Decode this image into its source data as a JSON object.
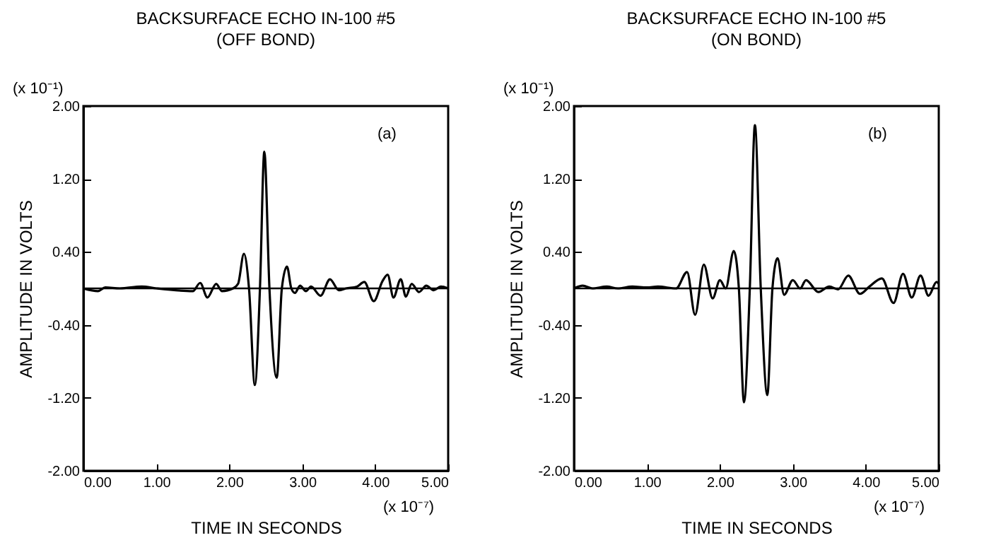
{
  "chart_data": [
    {
      "type": "line",
      "title": "BACKSURFACE ECHO IN-100 #5",
      "subtitle": "(OFF BOND)",
      "xlabel": "TIME IN SECONDS",
      "ylabel": "AMPLITUDE IN VOLTS",
      "annotations": [
        "(x 10⁻¹)",
        "(x 10⁻⁷)",
        "(a)"
      ],
      "x": [
        0,
        0.2,
        0.3,
        0.5,
        0.8,
        1.0,
        1.5,
        1.6,
        1.7,
        1.82,
        1.9,
        2.05,
        2.12,
        2.2,
        2.27,
        2.35,
        2.42,
        2.48,
        2.55,
        2.65,
        2.72,
        2.79,
        2.85,
        2.9,
        2.97,
        3.05,
        3.12,
        3.25,
        3.38,
        3.5,
        3.6,
        3.75,
        3.85,
        3.98,
        4.1,
        4.17,
        4.25,
        4.35,
        4.42,
        4.5,
        4.6,
        4.7,
        4.8,
        4.9,
        5.0
      ],
      "series": [
        {
          "color": "#000000",
          "values": [
            0,
            -0.03,
            0.01,
            0,
            0.02,
            0,
            -0.03,
            0.06,
            -0.1,
            0.05,
            -0.03,
            0,
            0.05,
            0.38,
            0,
            -1.06,
            0,
            1.5,
            0,
            -0.98,
            0,
            0.24,
            0,
            -0.05,
            0.03,
            -0.03,
            0.02,
            -0.08,
            0.1,
            -0.02,
            0,
            0.02,
            0.07,
            -0.14,
            0.08,
            0.15,
            -0.1,
            0.1,
            -0.09,
            0.05,
            -0.04,
            0.03,
            -0.02,
            0.02,
            0
          ]
        }
      ],
      "xlim": [
        0,
        5
      ],
      "xticks": [
        {
          "value": 0,
          "label": "0.00"
        },
        {
          "value": 1,
          "label": "1.00"
        },
        {
          "value": 2,
          "label": "2.00"
        },
        {
          "value": 3,
          "label": "3.00"
        },
        {
          "value": 4,
          "label": "4.00"
        },
        {
          "value": 5,
          "label": "5.00"
        }
      ],
      "ylim": [
        -2,
        2
      ],
      "yticks": [
        {
          "value": -2,
          "label": "-2.00"
        },
        {
          "value": -1.2,
          "label": "-1.20"
        },
        {
          "value": -0.4,
          "label": "-0.40"
        },
        {
          "value": 0.4,
          "label": "0.40"
        },
        {
          "value": 1.2,
          "label": "1.20"
        },
        {
          "value": 2,
          "label": "2.00"
        }
      ],
      "ref_lines": [
        {
          "axis": "y",
          "value": 0,
          "color": "#000000"
        }
      ]
    },
    {
      "type": "line",
      "title": "BACKSURFACE ECHO IN-100 #5",
      "subtitle": "(ON BOND)",
      "xlabel": "TIME IN SECONDS",
      "ylabel": "AMPLITUDE IN VOLTS",
      "annotations": [
        "(x 10⁻¹)",
        "(x 10⁻⁷)",
        "(b)"
      ],
      "x": [
        0,
        0.12,
        0.25,
        0.45,
        0.6,
        0.8,
        1.0,
        1.15,
        1.4,
        1.55,
        1.66,
        1.78,
        1.9,
        2.0,
        2.08,
        2.19,
        2.26,
        2.33,
        2.41,
        2.48,
        2.56,
        2.65,
        2.72,
        2.79,
        2.88,
        3.0,
        3.1,
        3.18,
        3.35,
        3.5,
        3.62,
        3.76,
        3.92,
        4.05,
        4.22,
        4.38,
        4.51,
        4.63,
        4.75,
        4.86,
        4.97,
        5.0
      ],
      "series": [
        {
          "color": "#000000",
          "values": [
            0,
            0.03,
            0,
            0.02,
            0,
            0.02,
            0.01,
            0.02,
            0,
            0.18,
            -0.29,
            0.26,
            -0.11,
            0.09,
            0,
            0.41,
            0,
            -1.25,
            0,
            1.79,
            0,
            -1.17,
            0,
            0.33,
            -0.07,
            0.09,
            0,
            0.09,
            -0.04,
            0.02,
            -0.01,
            0.14,
            -0.06,
            0.02,
            0.11,
            -0.16,
            0.16,
            -0.1,
            0.14,
            -0.08,
            0.07,
            0.05
          ]
        }
      ],
      "xlim": [
        0,
        5
      ],
      "xticks": [
        {
          "value": 0,
          "label": "0.00"
        },
        {
          "value": 1,
          "label": "1.00"
        },
        {
          "value": 2,
          "label": "2.00"
        },
        {
          "value": 3,
          "label": "3.00"
        },
        {
          "value": 4,
          "label": "4.00"
        },
        {
          "value": 5,
          "label": "5.00"
        }
      ],
      "ylim": [
        -2,
        2
      ],
      "yticks": [
        {
          "value": -2,
          "label": "-2.00"
        },
        {
          "value": -1.2,
          "label": "-1.20"
        },
        {
          "value": -0.4,
          "label": "-0.40"
        },
        {
          "value": 0.4,
          "label": "0.40"
        },
        {
          "value": 1.2,
          "label": "1.20"
        },
        {
          "value": 2,
          "label": "2.00"
        }
      ],
      "ref_lines": [
        {
          "axis": "y",
          "value": 0,
          "color": "#000000"
        }
      ]
    }
  ]
}
